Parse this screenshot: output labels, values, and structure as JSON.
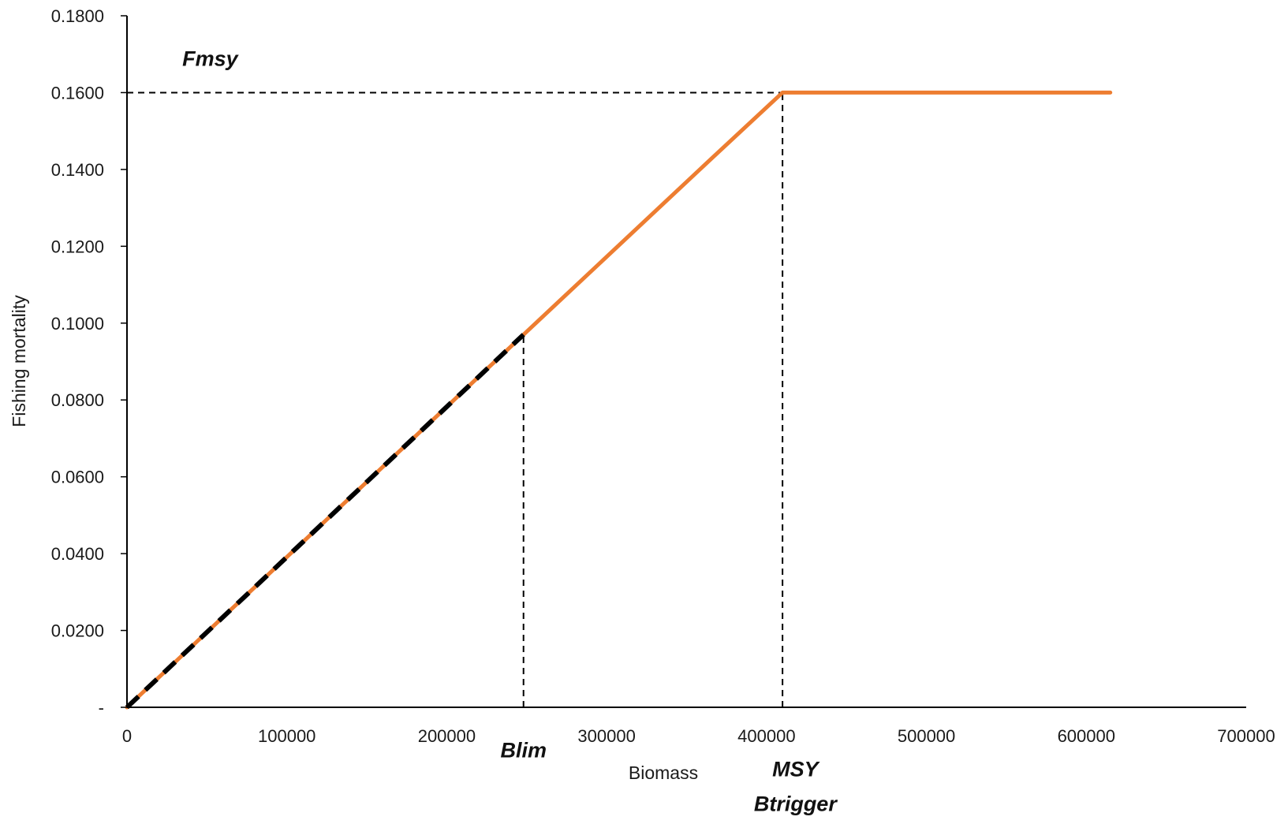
{
  "chart_data": {
    "type": "line",
    "xlabel": "Biomass",
    "ylabel": "Fishing mortality",
    "xlim": [
      0,
      700000
    ],
    "ylim": [
      0,
      0.18
    ],
    "x_ticks": [
      0,
      100000,
      200000,
      300000,
      400000,
      500000,
      600000,
      700000
    ],
    "x_tick_labels": [
      "0",
      "100000",
      "200000",
      "300000",
      "400000",
      "500000",
      "600000",
      "700000"
    ],
    "y_ticks": [
      0,
      0.02,
      0.04,
      0.06,
      0.08,
      0.1,
      0.12,
      0.14,
      0.16,
      0.18
    ],
    "y_tick_labels": [
      "-",
      "0.0200",
      "0.0400",
      "0.0600",
      "0.0800",
      "0.1000",
      "0.1200",
      "0.1400",
      "0.1600",
      "0.1800"
    ],
    "grid": false,
    "series": [
      {
        "color": "#ED7D31",
        "style": "solid",
        "x": [
          0,
          248000,
          366000,
          410000,
          615000
        ],
        "y": [
          0,
          0.097,
          0.143,
          0.16,
          0.16
        ]
      },
      {
        "color": "#000000",
        "style": "dashed",
        "x": [
          0,
          248000
        ],
        "y": [
          0,
          0.097
        ]
      }
    ],
    "reference_lines": [
      {
        "type": "horizontal",
        "y": 0.16,
        "x_from": 0,
        "x_to": 410000,
        "style": "dashed",
        "color": "#000000"
      },
      {
        "type": "vertical",
        "x": 248000,
        "y_from": 0,
        "y_to": 0.097,
        "style": "dashed",
        "color": "#000000"
      },
      {
        "type": "vertical",
        "x": 410000,
        "y_from": 0,
        "y_to": 0.16,
        "style": "dashed",
        "color": "#000000"
      }
    ],
    "annotations": [
      {
        "text": "Fmsy",
        "x": 52000,
        "y": 0.167
      },
      {
        "text": "Blim",
        "x": 248000,
        "y": -0.013
      },
      {
        "text": "MSY",
        "x": 418000,
        "y": -0.018
      },
      {
        "text": "Btrigger",
        "x": 418000,
        "y": -0.027
      }
    ]
  }
}
